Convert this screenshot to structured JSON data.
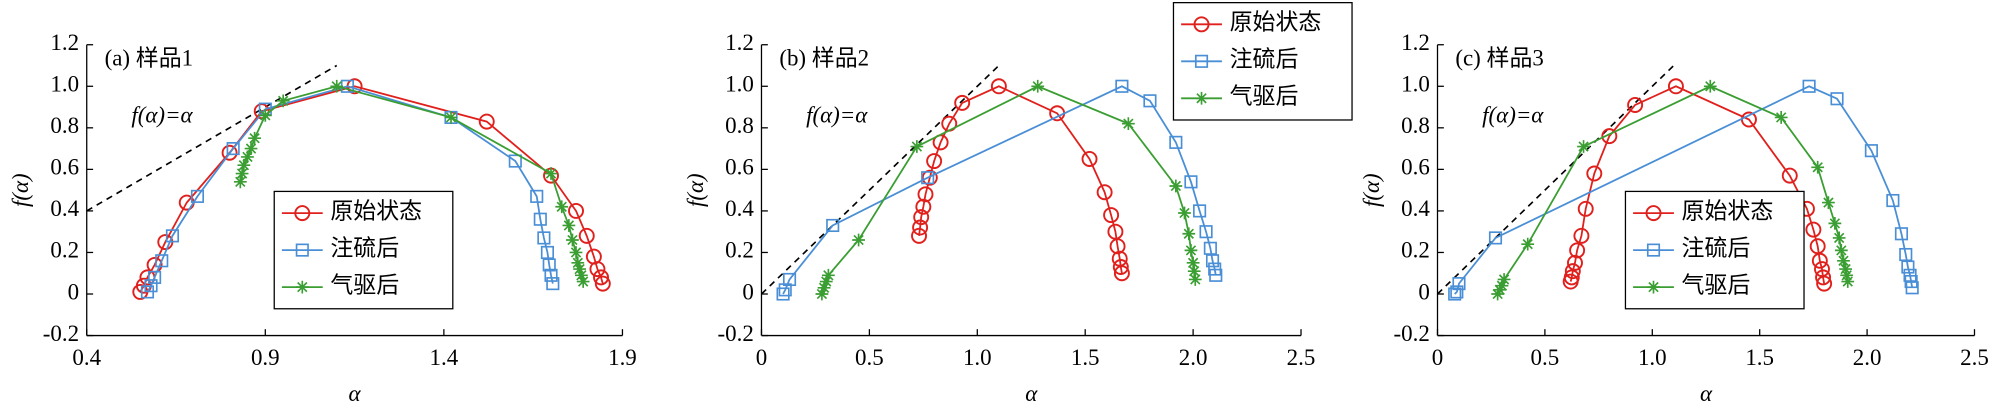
{
  "chart_data": [
    {
      "type": "line",
      "title": "(a) 样品1",
      "xlabel": "α",
      "ylabel": "f(α)",
      "legend": "lower center",
      "xlim": [
        0.4,
        1.9
      ],
      "xticks": [
        0.4,
        0.9,
        1.4,
        1.9
      ],
      "ylim": [
        -0.2,
        1.2
      ],
      "yticks": [
        -0.2,
        0,
        0.2,
        0.4,
        0.6,
        0.8,
        {
          "value": 1,
          "label": "1.0"
        },
        1.2
      ],
      "reference": {
        "label": "f(α)=α",
        "x": [
          0.4,
          1.1
        ],
        "values": [
          0.4,
          1.1
        ]
      },
      "series": [
        {
          "name": "原始状态",
          "color": "#e0201c",
          "marker": "circle",
          "x": [
            0.55,
            0.56,
            0.57,
            0.59,
            0.62,
            0.68,
            0.8,
            0.89,
            1.15,
            1.52,
            1.7,
            1.77,
            1.8,
            1.82,
            1.83,
            1.84,
            1.845
          ],
          "values": [
            0.01,
            0.04,
            0.08,
            0.14,
            0.25,
            0.44,
            0.68,
            0.88,
            1.0,
            0.83,
            0.57,
            0.4,
            0.28,
            0.18,
            0.12,
            0.08,
            0.05
          ]
        },
        {
          "name": "注硫后",
          "color": "#4a8fd6",
          "marker": "square",
          "x": [
            0.57,
            0.58,
            0.59,
            0.61,
            0.64,
            0.71,
            0.81,
            0.9,
            1.13,
            1.42,
            1.6,
            1.66,
            1.67,
            1.68,
            1.69,
            1.695,
            1.7,
            1.705
          ],
          "values": [
            0.01,
            0.04,
            0.08,
            0.16,
            0.28,
            0.47,
            0.7,
            0.89,
            1.0,
            0.85,
            0.64,
            0.47,
            0.36,
            0.27,
            0.2,
            0.14,
            0.09,
            0.05
          ]
        },
        {
          "name": "气驱后",
          "color": "#3a9e32",
          "marker": "star",
          "x": [
            0.83,
            0.835,
            0.84,
            0.85,
            0.86,
            0.87,
            0.9,
            0.95,
            1.1,
            1.42,
            1.7,
            1.73,
            1.75,
            1.76,
            1.77,
            1.775,
            1.78,
            1.785,
            1.79
          ],
          "values": [
            0.54,
            0.58,
            0.62,
            0.66,
            0.7,
            0.75,
            0.86,
            0.93,
            1.0,
            0.85,
            0.58,
            0.42,
            0.33,
            0.26,
            0.2,
            0.15,
            0.12,
            0.09,
            0.06
          ]
        }
      ]
    },
    {
      "type": "line",
      "title": "(b) 样品2",
      "xlabel": "α",
      "ylabel": "f(α)",
      "legend": "upper right",
      "xlim": [
        0,
        2.5
      ],
      "xticks": [
        0,
        0.5,
        {
          "value": 1,
          "label": "1.0"
        },
        1.5,
        {
          "value": 2,
          "label": "2.0"
        },
        2.5
      ],
      "ylim": [
        -0.2,
        1.2
      ],
      "yticks": [
        -0.2,
        0,
        0.2,
        0.4,
        0.6,
        0.8,
        {
          "value": 1,
          "label": "1.0"
        },
        1.2
      ],
      "reference": {
        "label": "f(α)=α",
        "x": [
          0,
          1.1
        ],
        "values": [
          0,
          1.1
        ]
      },
      "series": [
        {
          "name": "原始状态",
          "color": "#e0201c",
          "marker": "circle",
          "x": [
            0.73,
            0.735,
            0.74,
            0.75,
            0.76,
            0.78,
            0.8,
            0.83,
            0.87,
            0.93,
            1.1,
            1.37,
            1.52,
            1.59,
            1.62,
            1.64,
            1.65,
            1.66,
            1.665,
            1.67
          ],
          "values": [
            0.28,
            0.32,
            0.37,
            0.42,
            0.48,
            0.56,
            0.64,
            0.73,
            0.82,
            0.92,
            1.0,
            0.87,
            0.65,
            0.49,
            0.38,
            0.3,
            0.23,
            0.17,
            0.13,
            0.1
          ]
        },
        {
          "name": "注硫后",
          "color": "#4a8fd6",
          "marker": "square",
          "x": [
            0.1,
            0.11,
            0.13,
            0.33,
            0.77,
            1.67,
            1.8,
            1.92,
            1.99,
            2.03,
            2.06,
            2.08,
            2.09,
            2.1,
            2.105
          ],
          "values": [
            0.0,
            0.02,
            0.07,
            0.33,
            0.56,
            1.0,
            0.93,
            0.73,
            0.54,
            0.4,
            0.3,
            0.22,
            0.16,
            0.12,
            0.09
          ]
        },
        {
          "name": "气驱后",
          "color": "#3a9e32",
          "marker": "star",
          "x": [
            0.28,
            0.29,
            0.3,
            0.31,
            0.45,
            0.72,
            1.28,
            1.7,
            1.92,
            1.96,
            1.98,
            1.99,
            2.0,
            2.005,
            2.01
          ],
          "values": [
            0.0,
            0.03,
            0.06,
            0.09,
            0.26,
            0.71,
            1.0,
            0.82,
            0.52,
            0.39,
            0.29,
            0.21,
            0.15,
            0.11,
            0.07
          ]
        }
      ]
    },
    {
      "type": "line",
      "title": "(c) 样品3",
      "xlabel": "α",
      "ylabel": "f(α)",
      "legend": "lower center",
      "xlim": [
        0,
        2.5
      ],
      "xticks": [
        0,
        0.5,
        {
          "value": 1,
          "label": "1.0"
        },
        1.5,
        {
          "value": 2,
          "label": "2.0"
        },
        2.5
      ],
      "ylim": [
        -0.2,
        1.2
      ],
      "yticks": [
        -0.2,
        0,
        0.2,
        0.4,
        0.6,
        0.8,
        {
          "value": 1,
          "label": "1.0"
        },
        1.2
      ],
      "reference": {
        "label": "f(α)=α",
        "x": [
          0,
          1.1
        ],
        "values": [
          0,
          1.1
        ]
      },
      "series": [
        {
          "name": "原始状态",
          "color": "#e0201c",
          "marker": "circle",
          "x": [
            0.62,
            0.625,
            0.63,
            0.64,
            0.65,
            0.67,
            0.69,
            0.73,
            0.8,
            0.92,
            1.11,
            1.45,
            1.64,
            1.72,
            1.75,
            1.77,
            1.78,
            1.79,
            1.795,
            1.8
          ],
          "values": [
            0.06,
            0.08,
            0.11,
            0.15,
            0.21,
            0.28,
            0.41,
            0.58,
            0.76,
            0.91,
            1.0,
            0.84,
            0.57,
            0.41,
            0.31,
            0.23,
            0.16,
            0.12,
            0.08,
            0.05
          ]
        },
        {
          "name": "注硫后",
          "color": "#4a8fd6",
          "marker": "square",
          "x": [
            0.08,
            0.09,
            0.1,
            0.27,
            1.73,
            1.86,
            2.02,
            2.12,
            2.16,
            2.18,
            2.19,
            2.2,
            2.205,
            2.21
          ],
          "values": [
            0.0,
            0.01,
            0.05,
            0.27,
            1.0,
            0.94,
            0.69,
            0.45,
            0.29,
            0.19,
            0.13,
            0.09,
            0.06,
            0.03
          ]
        },
        {
          "name": "气驱后",
          "color": "#3a9e32",
          "marker": "star",
          "x": [
            0.28,
            0.29,
            0.3,
            0.31,
            0.42,
            0.68,
            1.27,
            1.6,
            1.77,
            1.82,
            1.85,
            1.87,
            1.88,
            1.89,
            1.9,
            1.905,
            1.91
          ],
          "values": [
            0.0,
            0.02,
            0.04,
            0.07,
            0.24,
            0.71,
            1.0,
            0.85,
            0.61,
            0.44,
            0.34,
            0.27,
            0.21,
            0.16,
            0.12,
            0.09,
            0.06
          ]
        }
      ]
    }
  ]
}
